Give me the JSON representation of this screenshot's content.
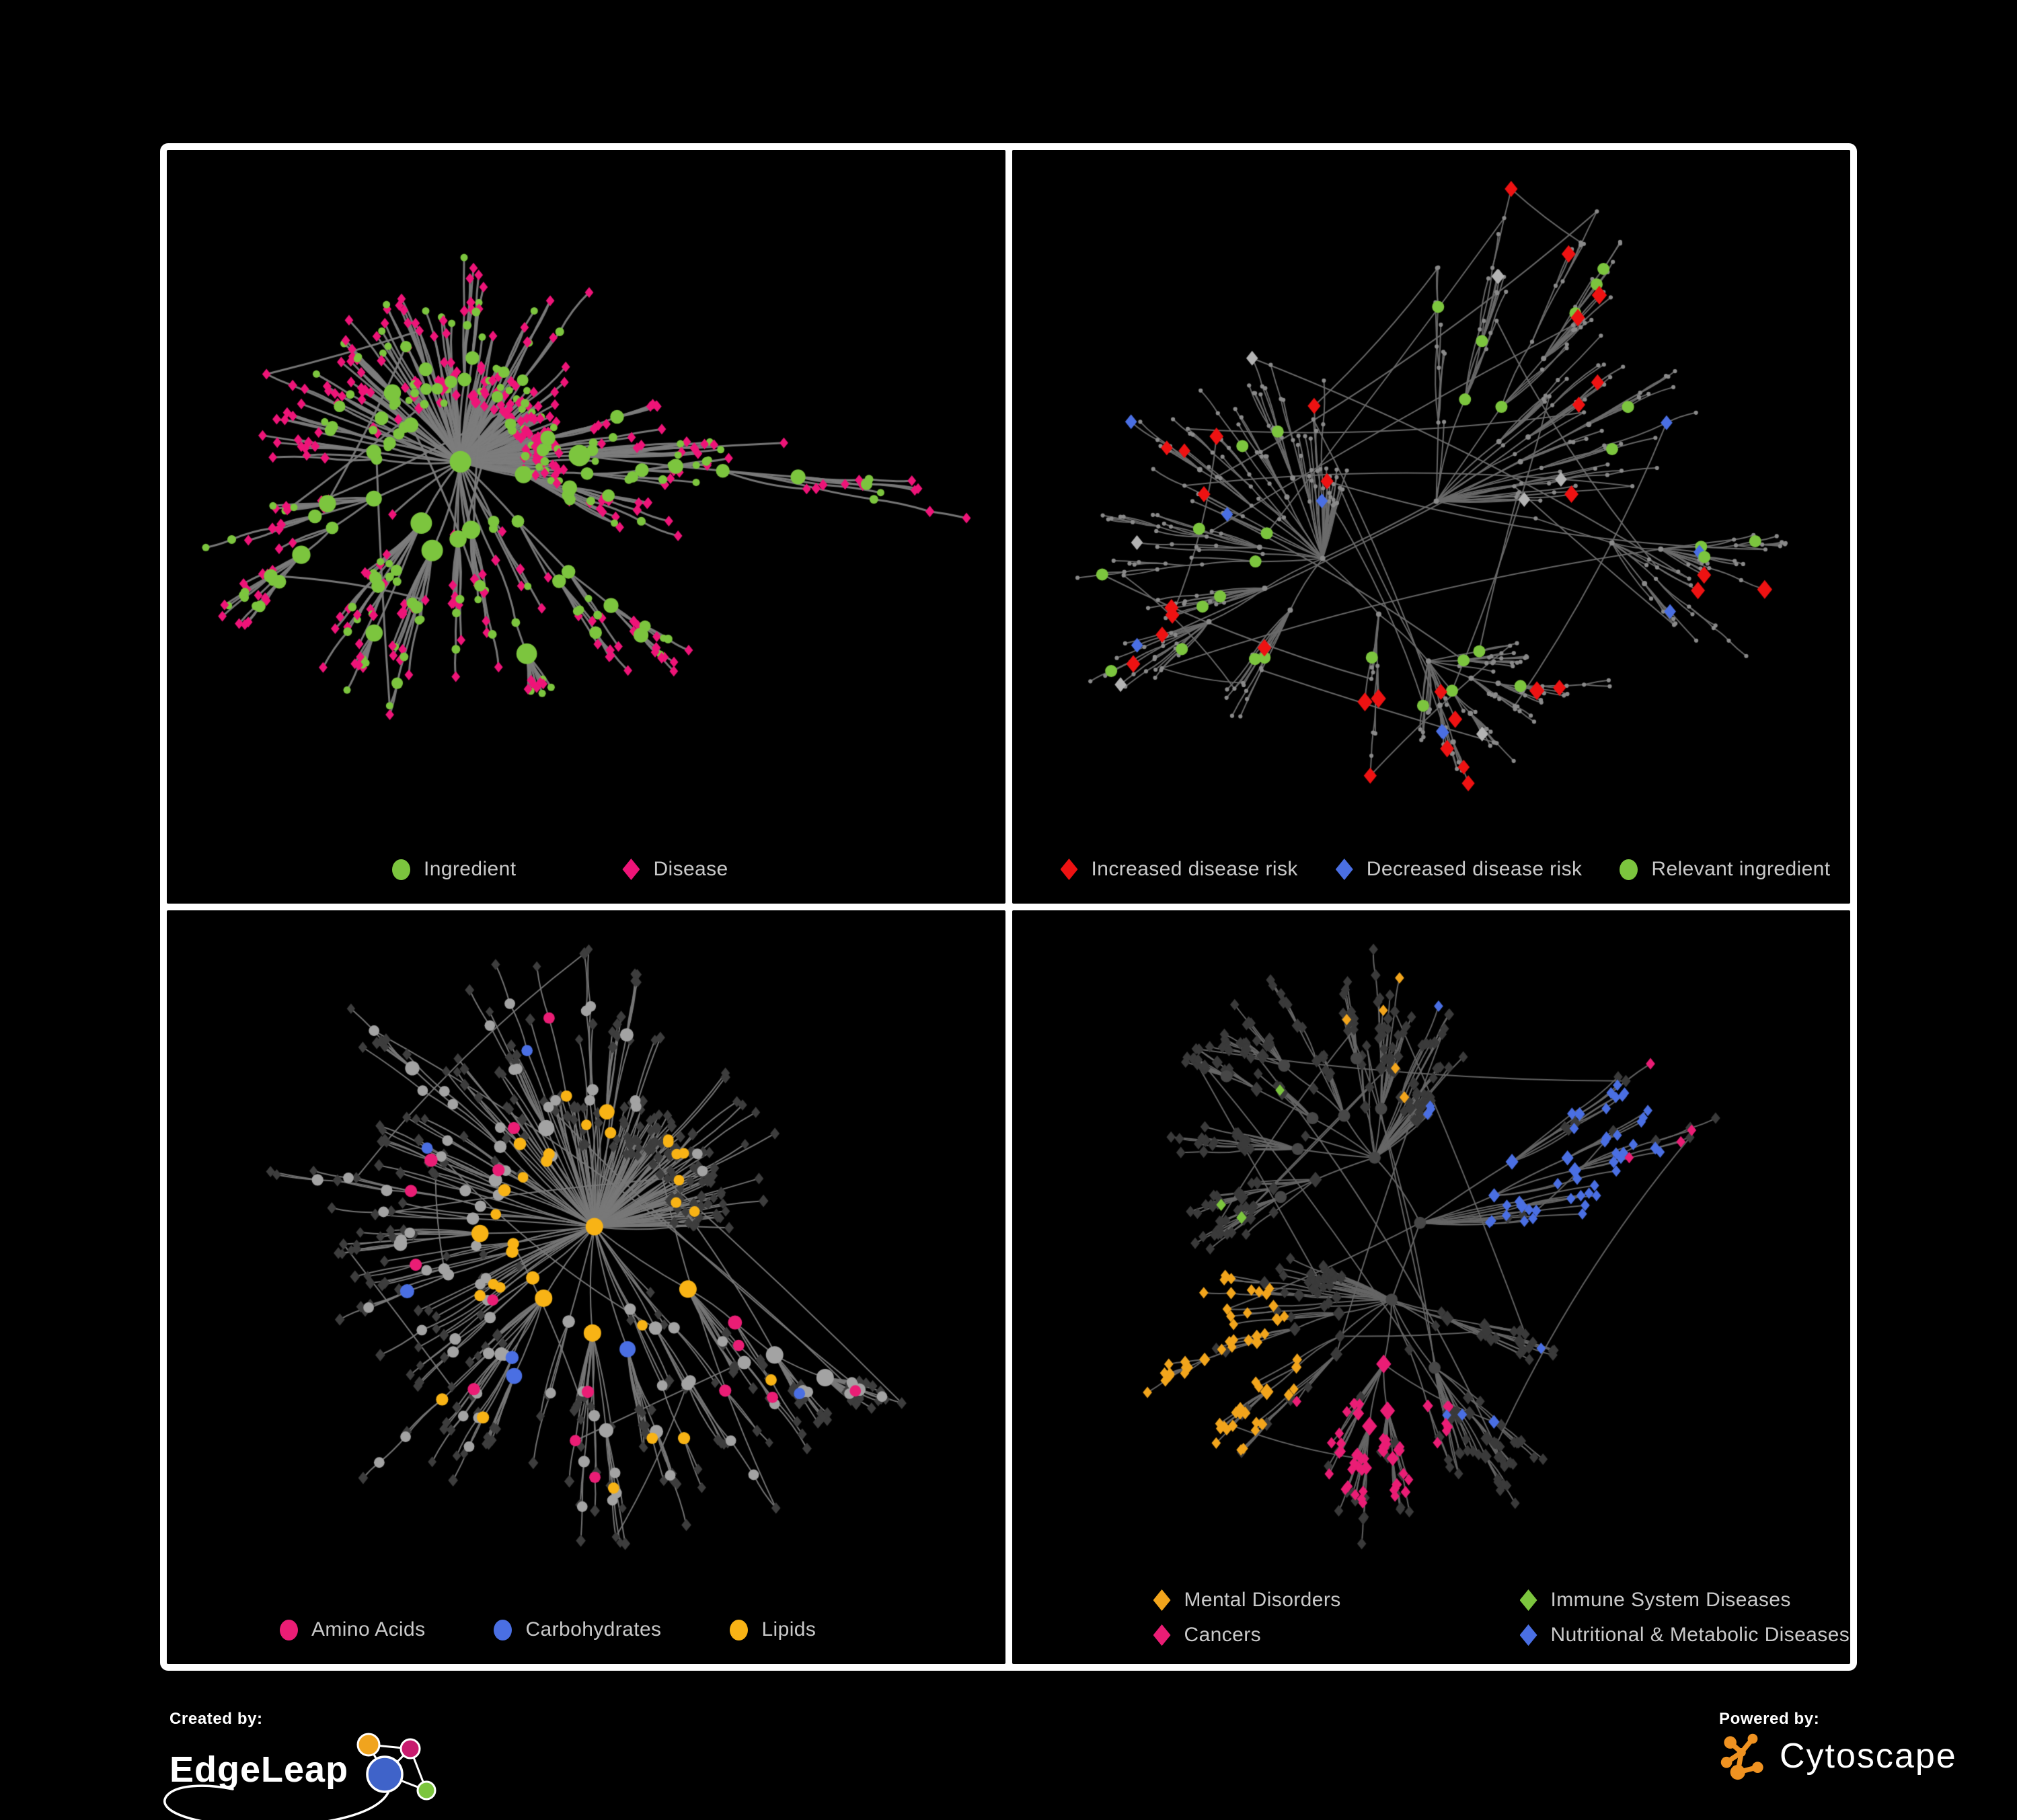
{
  "page": {
    "background": "#000000",
    "panel_border": "#ffffff"
  },
  "panels": [
    {
      "name": "ingredient-disease-network",
      "legend": {
        "items": [
          {
            "label": "Ingredient",
            "shape": "circle",
            "color": "#7cc53e"
          },
          {
            "label": "Disease",
            "shape": "diamond",
            "color": "#ee1478"
          }
        ]
      },
      "network": {
        "seed": 7,
        "nodes": 520,
        "attach": 0.4,
        "power": 1.3,
        "lens": [
          190,
          135,
          100,
          74,
          56,
          44,
          38
        ],
        "extra": 10,
        "edge_color": "#7c7c7c",
        "edge_width": 3,
        "style": "ingredient_disease",
        "colors": {
          "ingredient": "#7cc53e",
          "disease": "#ee1478"
        }
      }
    },
    {
      "name": "disease-risk-network",
      "legend": {
        "items": [
          {
            "label": "Increased disease risk",
            "shape": "diamond",
            "color": "#ee1212"
          },
          {
            "label": "Decreased disease risk",
            "shape": "diamond",
            "color": "#4a6fe3"
          },
          {
            "label": "Relevant ingredient",
            "shape": "circle",
            "color": "#7cc53e"
          }
        ]
      },
      "network": {
        "seed": 42,
        "nodes": 520,
        "attach": 0.6,
        "power": 1.1,
        "lens": [
          215,
          155,
          115,
          88,
          66,
          52,
          44
        ],
        "extra": 26,
        "edge_color": "#6c6c6c",
        "edge_width": 2,
        "style": "risk",
        "colors": {
          "base": "#8a8a8a",
          "increased": "#ee1212",
          "decreased": "#4a6fe3",
          "ingredient": "#7cc53e",
          "unknown": "#b3b3b3"
        },
        "counts": {
          "increased": 34,
          "decreased": 9,
          "ingredient": 30,
          "unknown": 8
        }
      }
    },
    {
      "name": "nutrient-class-network",
      "legend": {
        "items": [
          {
            "label": "Amino Acids",
            "shape": "circle",
            "color": "#ea1d75"
          },
          {
            "label": "Carbohydrates",
            "shape": "circle",
            "color": "#4a6fe3"
          },
          {
            "label": "Lipids",
            "shape": "circle",
            "color": "#f8b315"
          }
        ]
      },
      "network": {
        "seed": 15,
        "nodes": 520,
        "attach": 0.45,
        "power": 1.25,
        "lens": [
          185,
          135,
          100,
          75,
          56,
          46,
          38
        ],
        "extra": 14,
        "edge_color": "#787878",
        "edge_width": 2,
        "style": "nutrients",
        "colors": {
          "leaf": "#3d3d3d",
          "other": "#a3a3a3",
          "amino": "#ea1d75",
          "carb": "#4a6fe3",
          "lipid": "#f8b315"
        },
        "counts": {
          "amino": 16,
          "carb": 7,
          "lipid_extra": 8
        }
      }
    },
    {
      "name": "disease-class-network",
      "legend": {
        "items": [
          {
            "label": "Mental Disorders",
            "shape": "diamond",
            "color": "#f2a51c"
          },
          {
            "label": "Immune System Diseases",
            "shape": "diamond",
            "color": "#7cc53e"
          },
          {
            "label": "Cancers",
            "shape": "diamond",
            "color": "#ea1d75"
          },
          {
            "label": "Nutritional & Metabolic Diseases",
            "shape": "diamond",
            "color": "#4a6fe3"
          }
        ]
      },
      "network": {
        "seed": 91,
        "nodes": 560,
        "attach": 0.5,
        "power": 1.2,
        "lens": [
          180,
          130,
          98,
          74,
          58,
          46,
          40
        ],
        "extra": 18,
        "edge_color": "#666666",
        "edge_width": 2,
        "style": "disease_classes",
        "colors": {
          "base": "#3a3a3a",
          "hub": "#474747",
          "mental": "#f2a51c",
          "immune": "#7cc53e",
          "cancer": "#ea1d75",
          "metabolic": "#4a6fe3"
        }
      }
    }
  ],
  "footer": {
    "created_by": "Created by:",
    "edgeleap": "EdgeLeap",
    "powered_by": "Powered by:",
    "cytoscape": "Cytoscape",
    "edgeleap_colors": {
      "blue": "#3f63c9",
      "orange": "#f0a41e",
      "magenta": "#c81a6e",
      "green": "#7cc53e"
    },
    "cytoscape_color": "#ef9221"
  }
}
